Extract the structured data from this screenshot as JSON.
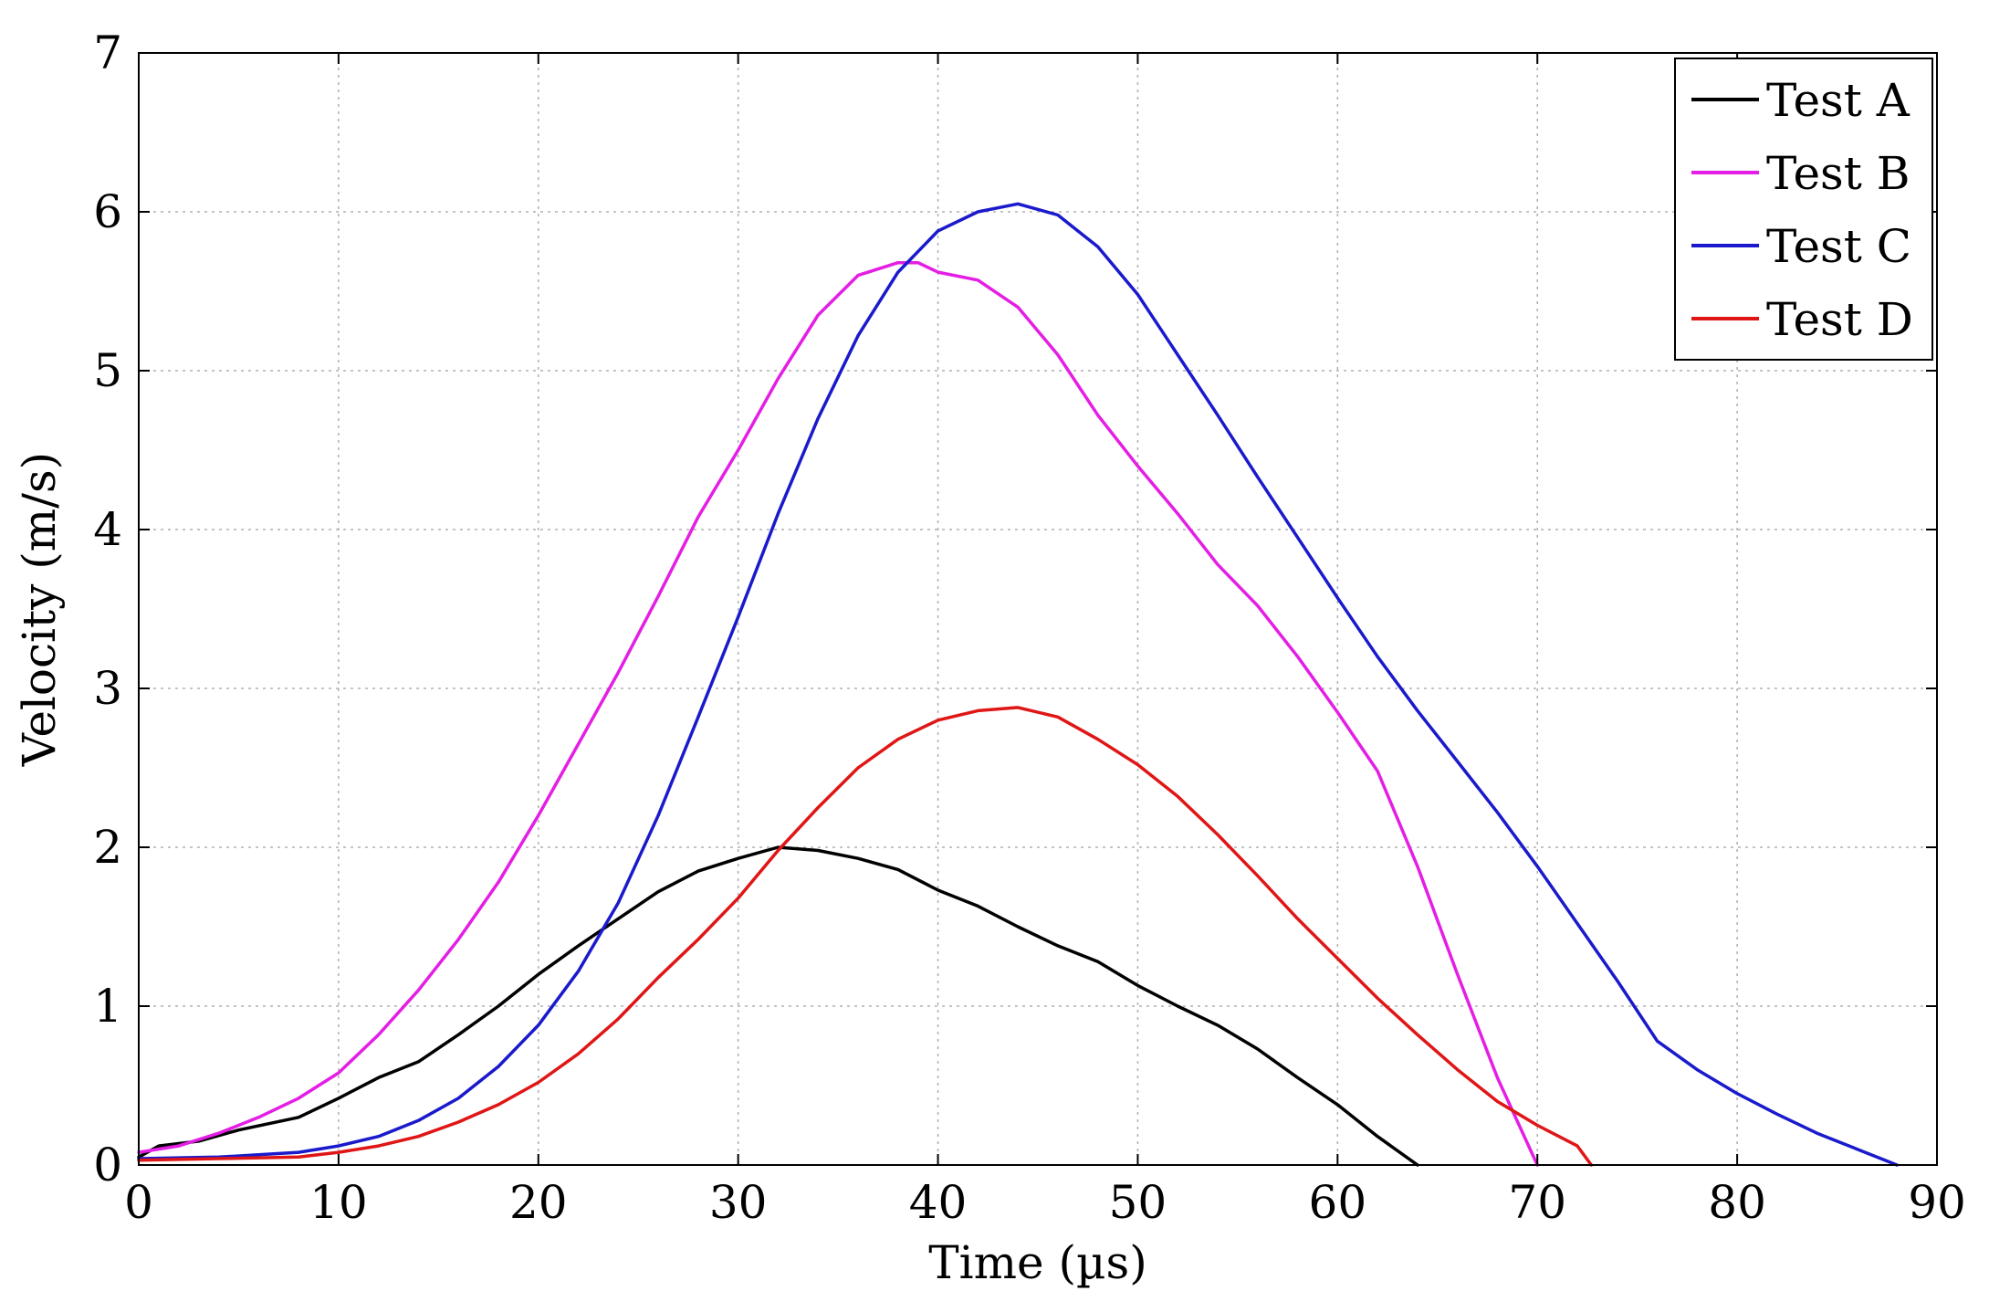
{
  "chart_data": {
    "type": "line",
    "title": "",
    "xlabel": "Time (µs)",
    "ylabel": "Velocity (m/s)",
    "xlim": [
      0,
      90
    ],
    "ylim": [
      0,
      7
    ],
    "xticks": [
      0,
      10,
      20,
      30,
      40,
      50,
      60,
      70,
      80,
      90
    ],
    "yticks": [
      0,
      1,
      2,
      3,
      4,
      5,
      6,
      7
    ],
    "grid": true,
    "legend_position": "top-right",
    "series": [
      {
        "name": "Test A",
        "color": "#000000",
        "x": [
          0,
          1,
          3,
          5,
          8,
          10,
          12,
          14,
          16,
          18,
          20,
          22,
          24,
          26,
          28,
          30,
          32,
          34,
          36,
          38,
          40,
          42,
          44,
          46,
          48,
          50,
          52,
          54,
          56,
          58,
          60,
          62,
          64
        ],
        "y": [
          0.05,
          0.12,
          0.15,
          0.22,
          0.3,
          0.42,
          0.55,
          0.65,
          0.82,
          1.0,
          1.2,
          1.38,
          1.55,
          1.72,
          1.85,
          1.93,
          2.0,
          1.98,
          1.93,
          1.86,
          1.73,
          1.63,
          1.5,
          1.38,
          1.28,
          1.13,
          1.0,
          0.88,
          0.73,
          0.55,
          0.38,
          0.18,
          0.0
        ]
      },
      {
        "name": "Test B",
        "color": "#e41ee4",
        "x": [
          0,
          2,
          4,
          6,
          8,
          10,
          12,
          14,
          16,
          18,
          20,
          22,
          24,
          26,
          28,
          30,
          32,
          34,
          36,
          38,
          39,
          40,
          42,
          44,
          46,
          48,
          50,
          52,
          54,
          56,
          58,
          60,
          62,
          64,
          66,
          68,
          70
        ],
        "y": [
          0.08,
          0.12,
          0.2,
          0.3,
          0.42,
          0.58,
          0.82,
          1.1,
          1.42,
          1.78,
          2.2,
          2.65,
          3.1,
          3.58,
          4.08,
          4.5,
          4.95,
          5.35,
          5.6,
          5.68,
          5.68,
          5.62,
          5.57,
          5.4,
          5.1,
          4.72,
          4.4,
          4.1,
          3.78,
          3.52,
          3.2,
          2.85,
          2.48,
          1.88,
          1.2,
          0.55,
          0.0
        ]
      },
      {
        "name": "Test C",
        "color": "#1a1acc",
        "x": [
          0,
          4,
          8,
          10,
          12,
          14,
          16,
          18,
          20,
          22,
          24,
          26,
          28,
          30,
          32,
          34,
          36,
          38,
          40,
          42,
          44,
          46,
          48,
          50,
          52,
          54,
          56,
          58,
          60,
          62,
          64,
          66,
          68,
          70,
          72,
          74,
          76,
          78,
          80,
          82,
          84,
          86,
          88
        ],
        "y": [
          0.04,
          0.05,
          0.08,
          0.12,
          0.18,
          0.28,
          0.42,
          0.62,
          0.88,
          1.22,
          1.65,
          2.2,
          2.82,
          3.45,
          4.1,
          4.7,
          5.22,
          5.62,
          5.88,
          6.0,
          6.05,
          5.98,
          5.78,
          5.48,
          5.1,
          4.72,
          4.33,
          3.95,
          3.57,
          3.2,
          2.86,
          2.54,
          2.22,
          1.88,
          1.52,
          1.16,
          0.78,
          0.6,
          0.45,
          0.32,
          0.2,
          0.1,
          0.0
        ]
      },
      {
        "name": "Test D",
        "color": "#e01616",
        "x": [
          0,
          4,
          8,
          10,
          12,
          14,
          16,
          18,
          20,
          22,
          24,
          26,
          28,
          30,
          32,
          34,
          36,
          38,
          40,
          42,
          44,
          46,
          48,
          50,
          52,
          54,
          56,
          58,
          60,
          62,
          64,
          66,
          68,
          70,
          72,
          72.7
        ],
        "y": [
          0.03,
          0.04,
          0.05,
          0.08,
          0.12,
          0.18,
          0.27,
          0.38,
          0.52,
          0.7,
          0.92,
          1.18,
          1.42,
          1.68,
          1.98,
          2.25,
          2.5,
          2.68,
          2.8,
          2.86,
          2.88,
          2.82,
          2.68,
          2.52,
          2.32,
          2.08,
          1.82,
          1.55,
          1.3,
          1.05,
          0.82,
          0.6,
          0.4,
          0.25,
          0.12,
          0.0
        ]
      }
    ]
  }
}
